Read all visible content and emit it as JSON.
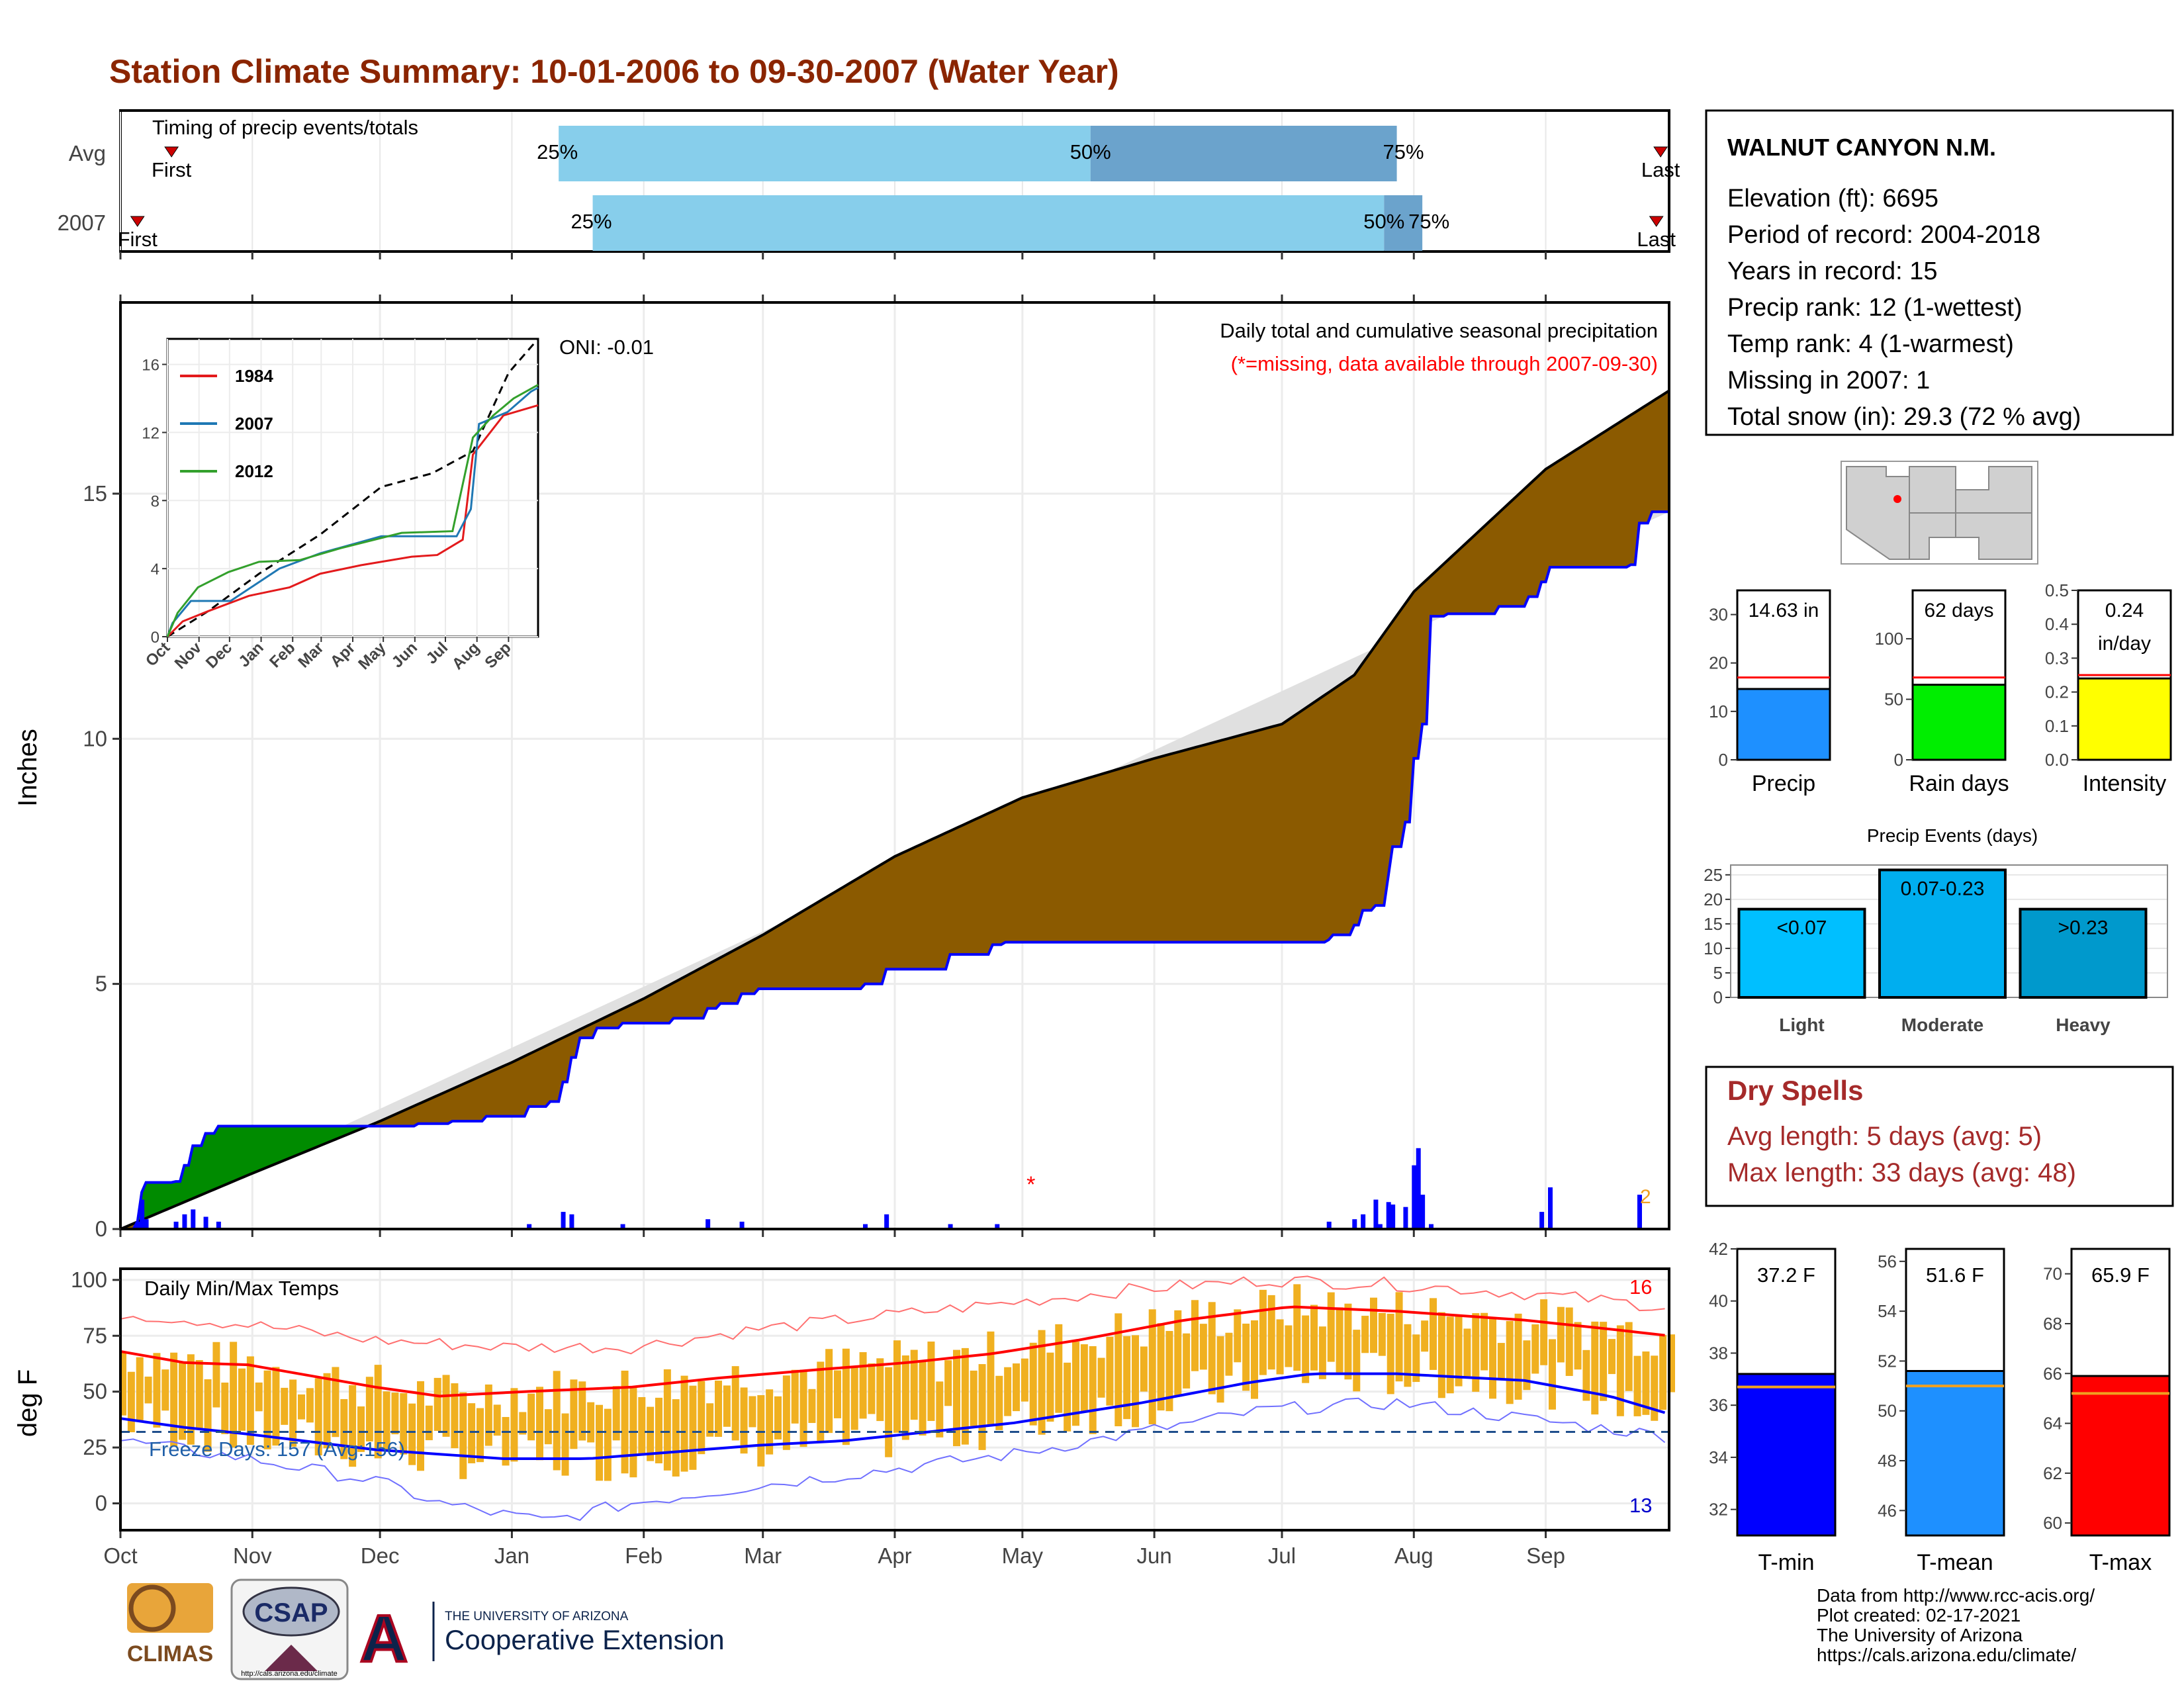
{
  "title": "Station Climate Summary: 10-01-2006 to 09-30-2007 (Water Year)",
  "months": [
    "Oct",
    "Nov",
    "Dec",
    "Jan",
    "Feb",
    "Mar",
    "Apr",
    "May",
    "Jun",
    "Jul",
    "Aug",
    "Sep"
  ],
  "timing": {
    "label": "Timing of precip events/totals",
    "rows": [
      {
        "name": "Avg",
        "first": "First",
        "last": "Last",
        "first_day": 12,
        "last_day": 362,
        "q25_day": 103,
        "q50_day": 228,
        "q75_day": 300,
        "q25": "25%",
        "q50": "50%",
        "q75": "75%"
      },
      {
        "name": "2007",
        "first": "First",
        "last": "Last",
        "first_day": 4,
        "last_day": 361,
        "q25_day": 111,
        "q50_day": 297,
        "q75_day": 306,
        "q25": "25%",
        "q50": "50%",
        "q75": "75%"
      }
    ]
  },
  "precip": {
    "ylabel": "Inches",
    "yticks": [
      0,
      5,
      10,
      15
    ],
    "ylim": [
      0,
      18.9
    ],
    "annotation1": "Daily total and cumulative seasonal precipitation",
    "annotation2": "(*=missing, data available through 2007-09-30)",
    "oni": "ONI: -0.01",
    "missing_marker": "*",
    "missing_day": 214,
    "missing_value": 1.0,
    "end_label": "2",
    "avg_cum": [
      [
        0,
        0
      ],
      [
        30,
        1.1
      ],
      [
        61,
        2.2
      ],
      [
        92,
        3.4
      ],
      [
        123,
        4.7
      ],
      [
        151,
        6.0
      ],
      [
        182,
        7.6
      ],
      [
        212,
        8.8
      ],
      [
        243,
        9.6
      ],
      [
        273,
        10.3
      ],
      [
        290,
        11.3
      ],
      [
        304,
        13.0
      ],
      [
        335,
        15.5
      ],
      [
        364,
        17.1
      ]
    ],
    "cum_2007": [
      [
        0,
        0
      ],
      [
        4,
        0.15
      ],
      [
        5,
        0.75
      ],
      [
        6,
        0.95
      ],
      [
        13,
        0.97
      ],
      [
        15,
        1.3
      ],
      [
        17,
        1.7
      ],
      [
        20,
        1.95
      ],
      [
        23,
        2.1
      ],
      [
        61,
        2.1
      ],
      [
        62,
        2.1
      ],
      [
        70,
        2.15
      ],
      [
        78,
        2.2
      ],
      [
        86,
        2.3
      ],
      [
        96,
        2.5
      ],
      [
        101,
        2.6
      ],
      [
        104,
        3.0
      ],
      [
        106,
        3.5
      ],
      [
        108,
        3.9
      ],
      [
        112,
        4.1
      ],
      [
        118,
        4.2
      ],
      [
        130,
        4.3
      ],
      [
        138,
        4.5
      ],
      [
        141,
        4.6
      ],
      [
        146,
        4.8
      ],
      [
        150,
        4.9
      ],
      [
        170,
        4.9
      ],
      [
        175,
        5.0
      ],
      [
        180,
        5.3
      ],
      [
        195,
        5.6
      ],
      [
        205,
        5.8
      ],
      [
        208,
        5.85
      ],
      [
        284,
        5.9
      ],
      [
        285,
        6.0
      ],
      [
        290,
        6.2
      ],
      [
        292,
        6.5
      ],
      [
        295,
        6.6
      ],
      [
        298,
        7.2
      ],
      [
        299,
        7.8
      ],
      [
        302,
        8.3
      ],
      [
        304,
        9.6
      ],
      [
        306,
        10.3
      ],
      [
        308,
        12.5
      ],
      [
        312,
        12.55
      ],
      [
        323,
        12.55
      ],
      [
        324,
        12.7
      ],
      [
        331,
        12.9
      ],
      [
        334,
        13.2
      ],
      [
        336,
        13.5
      ],
      [
        355,
        13.55
      ],
      [
        357,
        14.4
      ],
      [
        360,
        14.63
      ],
      [
        364,
        14.63
      ]
    ],
    "daily_2007": [
      [
        4,
        0.15
      ],
      [
        5,
        0.6
      ],
      [
        6,
        0.2
      ],
      [
        13,
        0.15
      ],
      [
        15,
        0.3
      ],
      [
        17,
        0.4
      ],
      [
        20,
        0.25
      ],
      [
        23,
        0.15
      ],
      [
        96,
        0.1
      ],
      [
        104,
        0.35
      ],
      [
        106,
        0.3
      ],
      [
        118,
        0.1
      ],
      [
        138,
        0.2
      ],
      [
        146,
        0.15
      ],
      [
        175,
        0.1
      ],
      [
        180,
        0.3
      ],
      [
        195,
        0.1
      ],
      [
        206,
        0.1
      ],
      [
        284,
        0.15
      ],
      [
        290,
        0.2
      ],
      [
        292,
        0.3
      ],
      [
        295,
        0.6
      ],
      [
        296,
        0.1
      ],
      [
        298,
        0.55
      ],
      [
        299,
        0.5
      ],
      [
        302,
        0.45
      ],
      [
        304,
        1.3
      ],
      [
        305,
        1.65
      ],
      [
        306,
        0.7
      ],
      [
        308,
        0.1
      ],
      [
        334,
        0.35
      ],
      [
        336,
        0.85
      ],
      [
        357,
        0.7
      ]
    ],
    "inset": {
      "yticks": [
        0,
        4,
        8,
        12,
        16
      ],
      "months": [
        "Oct",
        "Nov",
        "Dec",
        "Jan",
        "Feb",
        "Mar",
        "Apr",
        "May",
        "Jun",
        "Jul",
        "Aug",
        "Sep"
      ],
      "series": [
        {
          "name": "1984",
          "color": "#e31a1c",
          "points": [
            [
              0,
              0
            ],
            [
              15,
              0.9
            ],
            [
              40,
              1.5
            ],
            [
              80,
              2.4
            ],
            [
              120,
              2.9
            ],
            [
              150,
              3.7
            ],
            [
              190,
              4.2
            ],
            [
              240,
              4.7
            ],
            [
              265,
              4.8
            ],
            [
              290,
              5.7
            ],
            [
              300,
              10.7
            ],
            [
              330,
              13.0
            ],
            [
              364,
              13.6
            ]
          ]
        },
        {
          "name": "2007",
          "color": "#1f78b4",
          "points": [
            [
              0,
              0
            ],
            [
              5,
              0.8
            ],
            [
              23,
              2.1
            ],
            [
              62,
              2.1
            ],
            [
              110,
              4.0
            ],
            [
              150,
              4.9
            ],
            [
              210,
              5.9
            ],
            [
              284,
              5.9
            ],
            [
              298,
              7.5
            ],
            [
              306,
              12.5
            ],
            [
              334,
              13.2
            ],
            [
              357,
              14.4
            ],
            [
              364,
              14.63
            ]
          ]
        },
        {
          "name": "2012",
          "color": "#33a02c",
          "points": [
            [
              0,
              0
            ],
            [
              10,
              1.4
            ],
            [
              30,
              2.9
            ],
            [
              60,
              3.8
            ],
            [
              90,
              4.4
            ],
            [
              130,
              4.5
            ],
            [
              170,
              5.2
            ],
            [
              230,
              6.1
            ],
            [
              280,
              6.2
            ],
            [
              300,
              11.7
            ],
            [
              320,
              13.0
            ],
            [
              340,
              14.0
            ],
            [
              364,
              14.8
            ]
          ]
        }
      ],
      "avg_line": [
        [
          0,
          0
        ],
        [
          40,
          1.5
        ],
        [
          90,
          3.7
        ],
        [
          150,
          6.0
        ],
        [
          210,
          8.8
        ],
        [
          260,
          9.6
        ],
        [
          300,
          10.9
        ],
        [
          335,
          15.5
        ],
        [
          364,
          17.5
        ]
      ]
    }
  },
  "temps": {
    "ylabel": "deg F",
    "label": "Daily Min/Max Temps",
    "freeze_label": "Freeze Days: 157 (Avg:156)",
    "freeze_line": 32,
    "yticks": [
      0,
      25,
      50,
      75,
      100
    ],
    "ylim": [
      -12,
      105
    ],
    "count_hot": "16",
    "count_cold": "13",
    "avg_max": [
      [
        0,
        68
      ],
      [
        15,
        63
      ],
      [
        30,
        62
      ],
      [
        60,
        52
      ],
      [
        75,
        48
      ],
      [
        95,
        50
      ],
      [
        120,
        52
      ],
      [
        140,
        56
      ],
      [
        165,
        60
      ],
      [
        185,
        63
      ],
      [
        205,
        67
      ],
      [
        225,
        73
      ],
      [
        250,
        82
      ],
      [
        275,
        88
      ],
      [
        300,
        86
      ],
      [
        330,
        82
      ],
      [
        350,
        78
      ],
      [
        364,
        75
      ]
    ],
    "avg_min": [
      [
        0,
        38
      ],
      [
        15,
        34
      ],
      [
        30,
        31
      ],
      [
        60,
        24
      ],
      [
        90,
        20
      ],
      [
        110,
        20
      ],
      [
        130,
        23
      ],
      [
        150,
        26
      ],
      [
        170,
        28
      ],
      [
        190,
        32
      ],
      [
        210,
        36
      ],
      [
        240,
        45
      ],
      [
        265,
        54
      ],
      [
        280,
        58
      ],
      [
        300,
        58
      ],
      [
        330,
        55
      ],
      [
        350,
        48
      ],
      [
        364,
        40
      ]
    ],
    "rec_max": [
      [
        0,
        85
      ],
      [
        30,
        80
      ],
      [
        60,
        73
      ],
      [
        90,
        70
      ],
      [
        120,
        70
      ],
      [
        150,
        78
      ],
      [
        180,
        84
      ],
      [
        210,
        90
      ],
      [
        240,
        96
      ],
      [
        270,
        100
      ],
      [
        300,
        98
      ],
      [
        330,
        94
      ],
      [
        364,
        88
      ]
    ],
    "rec_min": [
      [
        0,
        28
      ],
      [
        30,
        20
      ],
      [
        60,
        10
      ],
      [
        75,
        0
      ],
      [
        90,
        -5
      ],
      [
        100,
        -8
      ],
      [
        120,
        0
      ],
      [
        150,
        8
      ],
      [
        180,
        15
      ],
      [
        210,
        22
      ],
      [
        240,
        32
      ],
      [
        270,
        42
      ],
      [
        300,
        45
      ],
      [
        330,
        38
      ],
      [
        364,
        30
      ]
    ]
  },
  "station": {
    "name": "WALNUT CANYON N.M.",
    "lines": [
      "Elevation (ft): 6695",
      "Period of record: 2004-2018",
      "Years in record: 15",
      "Precip rank: 12 (1-wettest)",
      "Temp rank: 4 (1-warmest)",
      "Missing in 2007: 1",
      "Total snow (in): 29.3 (72 % avg)"
    ]
  },
  "stats": [
    {
      "name": "Precip",
      "label": "14.63 in",
      "value": 14.63,
      "avg": 17.0,
      "ymax": 35,
      "yticks": [
        0,
        10,
        20,
        30
      ],
      "color": "#1e90ff"
    },
    {
      "name": "Rain days",
      "label": "62 days",
      "value": 62,
      "avg": 68,
      "ymax": 140,
      "yticks": [
        0,
        50,
        100
      ],
      "color": "#00ee00"
    },
    {
      "name": "Intensity",
      "label": "0.24",
      "label2": "in/day",
      "value": 0.24,
      "avg": 0.25,
      "ymax": 0.5,
      "yticks": [
        0.0,
        0.1,
        0.2,
        0.3,
        0.4,
        0.5
      ],
      "color": "#ffff00"
    }
  ],
  "events": {
    "title": "Precip Events (days)",
    "yticks": [
      0,
      5,
      10,
      15,
      20,
      25
    ],
    "ymax": 27,
    "bars": [
      {
        "name": "Light",
        "label": "<0.07",
        "value": 18,
        "color": "#00bfff"
      },
      {
        "name": "Moderate",
        "label": "0.07-0.23",
        "value": 26,
        "color": "#00aeef"
      },
      {
        "name": "Heavy",
        "label": ">0.23",
        "value": 18,
        "color": "#0099cc"
      }
    ]
  },
  "dry": {
    "title": "Dry Spells",
    "line1": "Avg length: 5 days (avg: 5)",
    "line2": "Max length: 33 days (avg: 48)"
  },
  "temp_stats": [
    {
      "name": "T-min",
      "label": "37.2 F",
      "value": 37.2,
      "avg": 36.7,
      "ymin": 31,
      "ymax": 42,
      "yticks": [
        32,
        34,
        36,
        38,
        40,
        42
      ],
      "color": "#0000ff"
    },
    {
      "name": "T-mean",
      "label": "51.6 F",
      "value": 51.6,
      "avg": 51.0,
      "ymin": 45,
      "ymax": 56.5,
      "yticks": [
        46,
        48,
        50,
        52,
        54,
        56
      ],
      "color": "#1e90ff"
    },
    {
      "name": "T-max",
      "label": "65.9 F",
      "value": 65.9,
      "avg": 65.2,
      "ymin": 59.5,
      "ymax": 71,
      "yticks": [
        60,
        62,
        64,
        66,
        68,
        70
      ],
      "color": "#ff0000"
    }
  ],
  "credits": [
    "Data from http://www.rcc-acis.org/",
    "Plot created: 02-17-2021",
    "The University of Arizona",
    "https://cals.arizona.edu/climate/"
  ],
  "logos": {
    "climas": "CLIMAS",
    "csap": "CSAP",
    "csap_url": "http://cals.arizona.edu/climate",
    "ua_letter": "A",
    "ua_line1": "THE UNIVERSITY OF ARIZONA",
    "ua_line2": "Cooperative Extension"
  }
}
